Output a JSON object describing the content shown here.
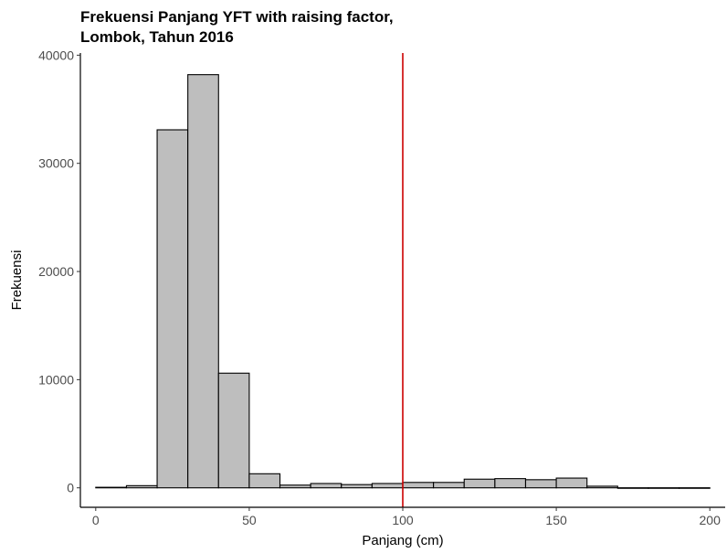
{
  "chart_data": {
    "type": "bar",
    "title_lines": [
      "Frekuensi Panjang YFT with raising factor,",
      "Lombok, Tahun 2016"
    ],
    "xlabel": "Panjang (cm)",
    "ylabel": "Frekuensi",
    "xlim": [
      -5,
      205
    ],
    "ylim": [
      -1800,
      40200
    ],
    "xticks": [
      0,
      50,
      100,
      150,
      200
    ],
    "yticks": [
      0,
      10000,
      20000,
      30000,
      40000
    ],
    "bin_width": 10,
    "bins": [
      {
        "x": 0,
        "value": 50
      },
      {
        "x": 10,
        "value": 200
      },
      {
        "x": 20,
        "value": 33100
      },
      {
        "x": 30,
        "value": 38200
      },
      {
        "x": 40,
        "value": 10600
      },
      {
        "x": 50,
        "value": 1300
      },
      {
        "x": 60,
        "value": 250
      },
      {
        "x": 70,
        "value": 400
      },
      {
        "x": 80,
        "value": 300
      },
      {
        "x": 90,
        "value": 400
      },
      {
        "x": 100,
        "value": 500
      },
      {
        "x": 110,
        "value": 500
      },
      {
        "x": 120,
        "value": 800
      },
      {
        "x": 130,
        "value": 850
      },
      {
        "x": 140,
        "value": 750
      },
      {
        "x": 150,
        "value": 900
      },
      {
        "x": 160,
        "value": 150
      },
      {
        "x": 170,
        "value": 5
      },
      {
        "x": 180,
        "value": 5
      },
      {
        "x": 190,
        "value": 5
      }
    ],
    "reference_line": {
      "x": 100,
      "color": "#cc0000"
    },
    "bar_fill": "#bebebe",
    "bar_stroke": "#000000",
    "grid": false
  }
}
